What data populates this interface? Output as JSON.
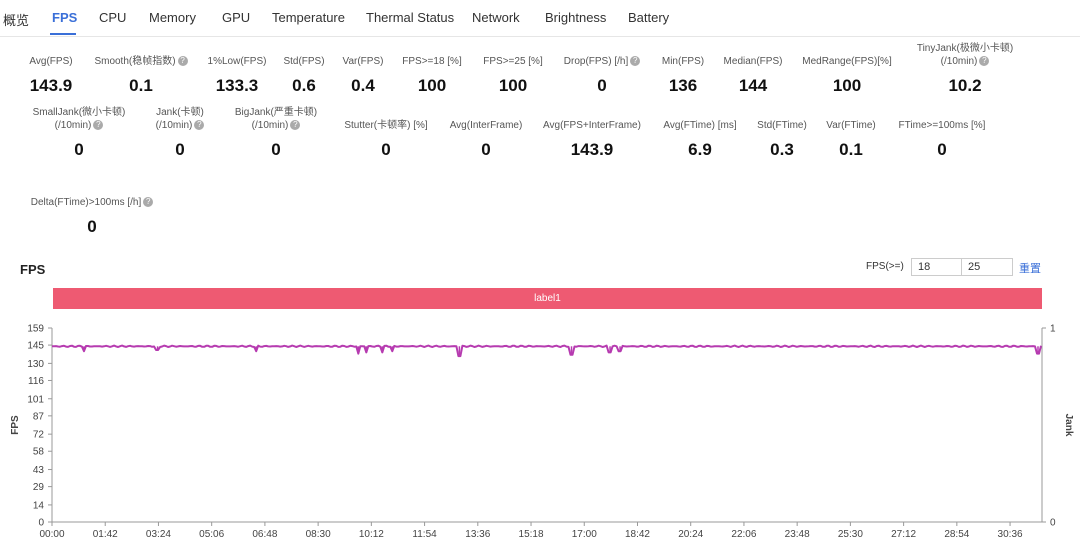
{
  "tabs": [
    "概览",
    "FPS",
    "CPU",
    "Memory",
    "GPU",
    "Temperature",
    "Thermal Status",
    "Network",
    "Brightness",
    "Battery"
  ],
  "active_tab": "FPS",
  "metrics_row1": [
    {
      "label": "Avg(FPS)",
      "value": "143.9",
      "help": false
    },
    {
      "label": "Smooth(稳帧指数)",
      "value": "0.1",
      "help": true
    },
    {
      "label": "1%Low(FPS)",
      "value": "133.3",
      "help": false
    },
    {
      "label": "Std(FPS)",
      "value": "0.6",
      "help": false
    },
    {
      "label": "Var(FPS)",
      "value": "0.4",
      "help": false
    },
    {
      "label": "FPS>=18 [%]",
      "value": "100",
      "help": false
    },
    {
      "label": "FPS>=25 [%]",
      "value": "100",
      "help": false
    },
    {
      "label": "Drop(FPS) [/h]",
      "value": "0",
      "help": true
    },
    {
      "label": "Min(FPS)",
      "value": "136",
      "help": false
    },
    {
      "label": "Median(FPS)",
      "value": "144",
      "help": false
    },
    {
      "label": "MedRange(FPS)[%]",
      "value": "100",
      "help": false
    },
    {
      "label": "TinyJank(极微小卡顿)",
      "label2": "(/10min)",
      "value": "10.2",
      "help": true
    }
  ],
  "metrics_row2": [
    {
      "label": "SmallJank(微小卡顿)",
      "label2": "(/10min)",
      "value": "0",
      "help": true
    },
    {
      "label": "Jank(卡顿)",
      "label2": "(/10min)",
      "value": "0",
      "help": true
    },
    {
      "label": "BigJank(严重卡顿)",
      "label2": "(/10min)",
      "value": "0",
      "help": true
    },
    {
      "label": "Stutter(卡顿率) [%]",
      "value": "0",
      "help": false
    },
    {
      "label": "Avg(InterFrame)",
      "value": "0",
      "help": false
    },
    {
      "label": "Avg(FPS+InterFrame)",
      "value": "143.9",
      "help": false
    },
    {
      "label": "Avg(FTime) [ms]",
      "value": "6.9",
      "help": false
    },
    {
      "label": "Std(FTime)",
      "value": "0.3",
      "help": false
    },
    {
      "label": "Var(FTime)",
      "value": "0.1",
      "help": false
    },
    {
      "label": "FTime>=100ms [%]",
      "value": "0",
      "help": false
    }
  ],
  "metrics_row3": [
    {
      "label": "Delta(FTime)>100ms [/h]",
      "value": "0",
      "help": true
    }
  ],
  "chart_section": {
    "title": "FPS",
    "threshold_label": "FPS(>=)",
    "threshold_1": "18",
    "threshold_2": "25",
    "reset_label": "重置",
    "label_bar": "label1"
  },
  "chart_data": {
    "type": "line",
    "ylabel": "FPS",
    "y2label": "Jank",
    "yticks": [
      0,
      14,
      29,
      43,
      58,
      72,
      87,
      101,
      116,
      130,
      145,
      159
    ],
    "ylim": [
      0,
      159
    ],
    "y2ticks": [
      0,
      1
    ],
    "y2lim": [
      0,
      1
    ],
    "xticks": [
      "00:00",
      "01:42",
      "03:24",
      "05:06",
      "06:48",
      "08:30",
      "10:12",
      "11:54",
      "13:36",
      "15:18",
      "17:00",
      "18:42",
      "20:24",
      "22:06",
      "23:48",
      "25:30",
      "27:12",
      "28:54",
      "30:36"
    ],
    "grid": false,
    "series": [
      {
        "name": "FPS",
        "color": "#b63bb0",
        "x_range_seconds": [
          0,
          1978
        ],
        "baseline": 144,
        "dips": [
          {
            "t": "01:04",
            "value": 140
          },
          {
            "t": "03:31",
            "value": 141
          },
          {
            "t": "06:48",
            "value": 140
          },
          {
            "t": "10:12",
            "value": 138
          },
          {
            "t": "10:28",
            "value": 139
          },
          {
            "t": "11:00",
            "value": 139
          },
          {
            "t": "11:20",
            "value": 140
          },
          {
            "t": "13:34",
            "value": 136
          },
          {
            "t": "17:18",
            "value": 137
          },
          {
            "t": "18:35",
            "value": 139
          },
          {
            "t": "18:55",
            "value": 140
          },
          {
            "t": "32:50",
            "value": 138
          }
        ]
      }
    ]
  }
}
